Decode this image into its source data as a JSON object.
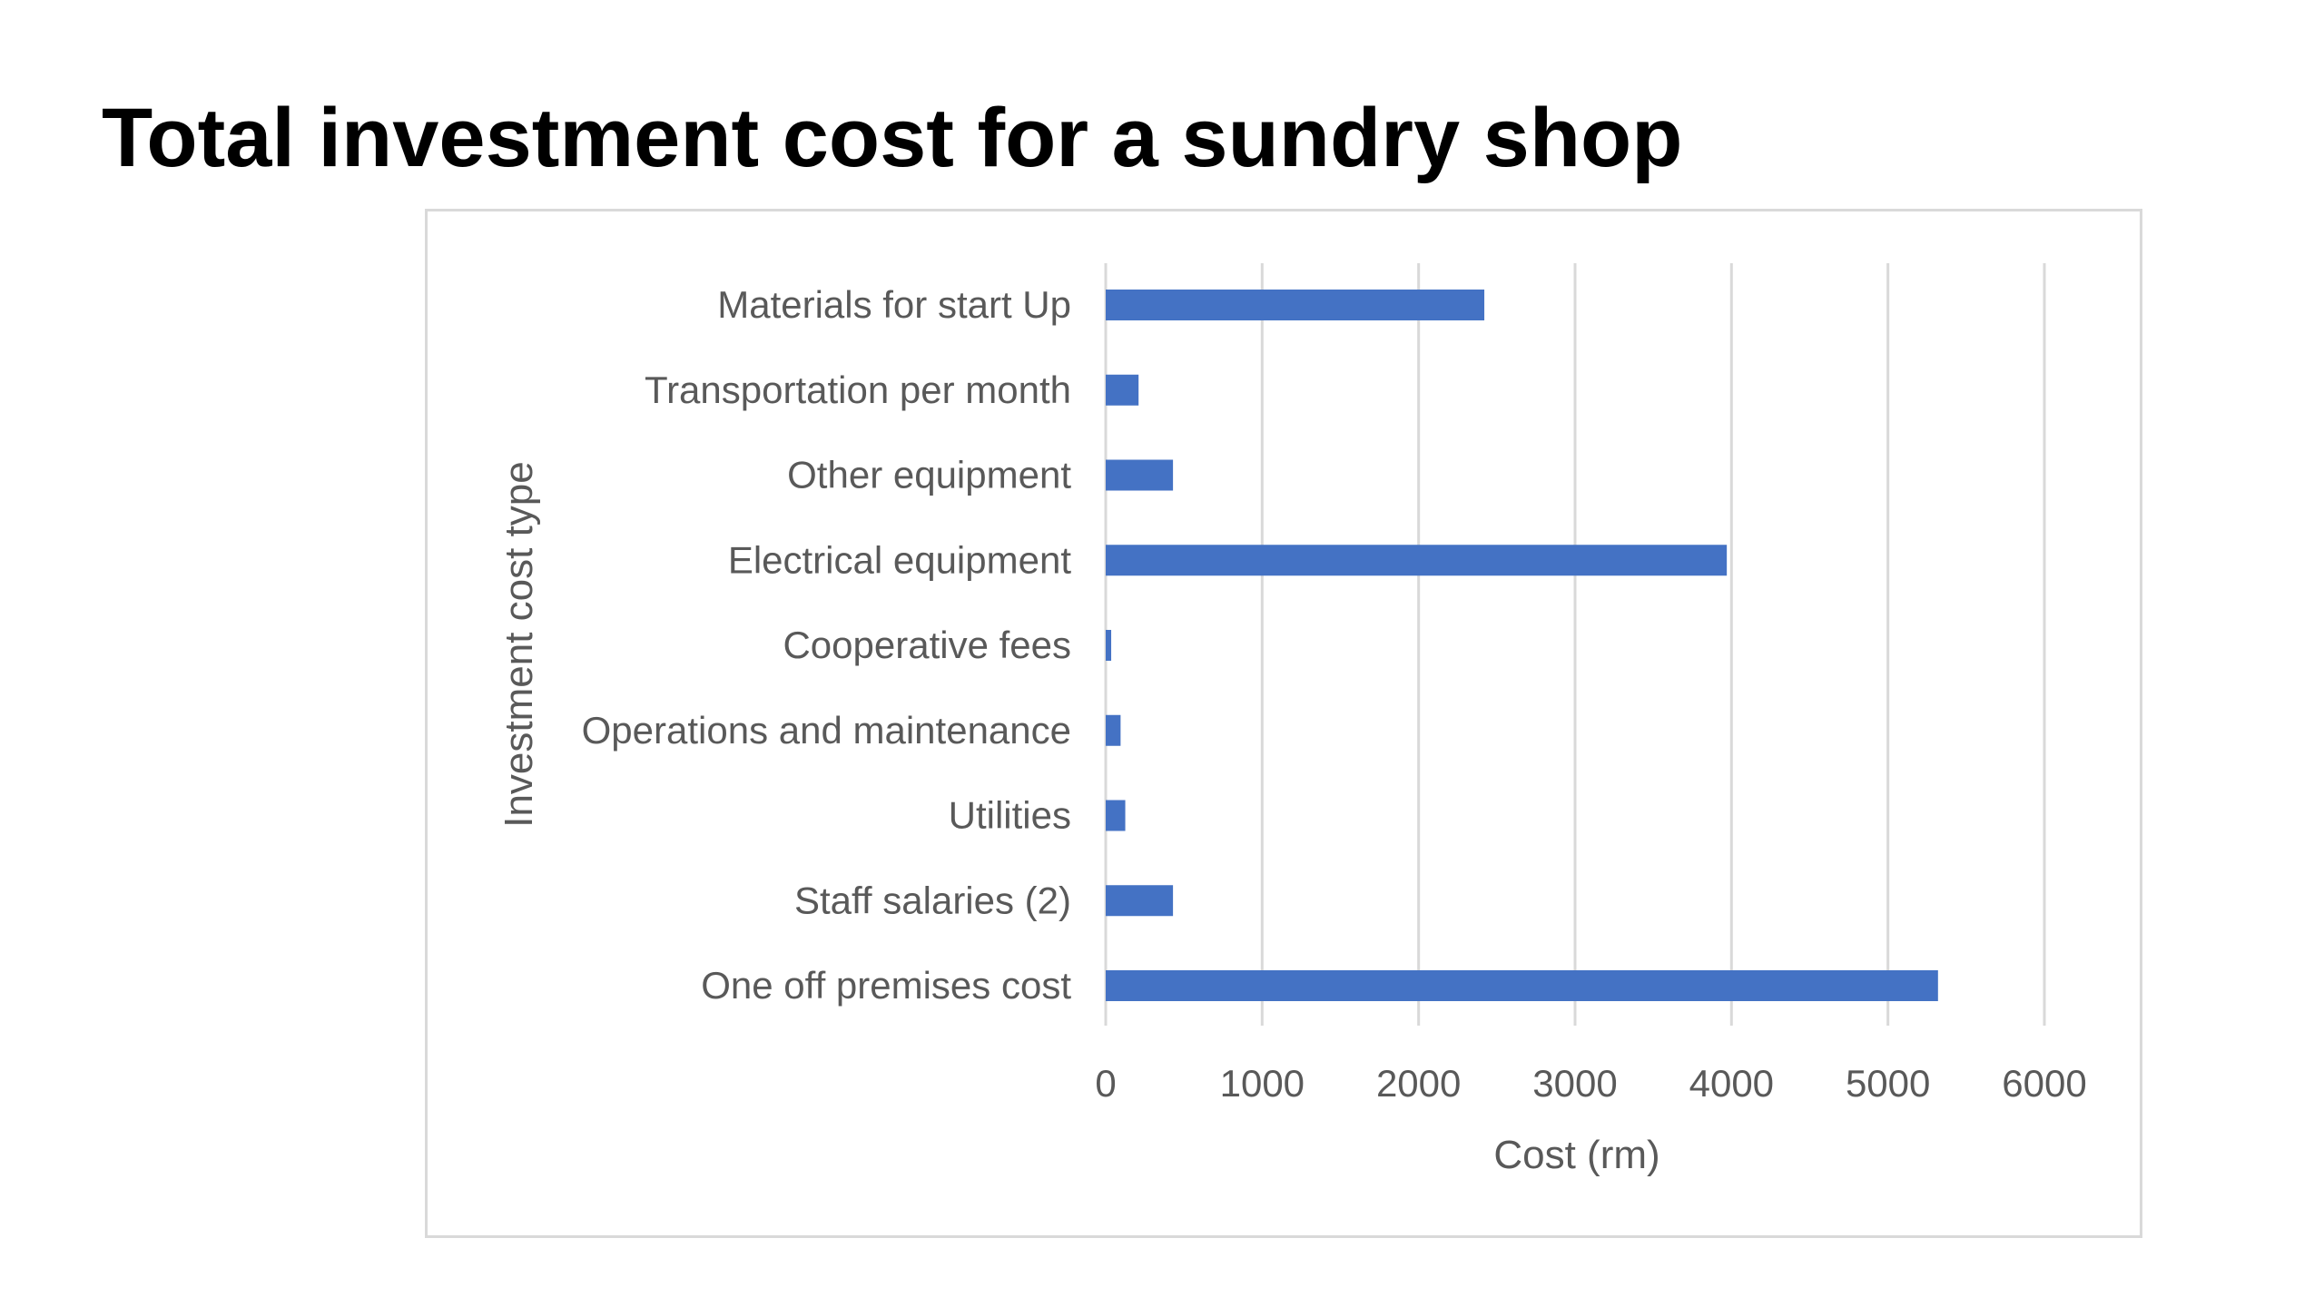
{
  "slide": {
    "title": "Total investment cost for a sundry shop"
  },
  "chart_data": {
    "type": "bar",
    "orientation": "horizontal",
    "categories": [
      "Materials for start Up",
      "Transportation per month",
      "Other equipment",
      "Electrical equipment",
      "Cooperative fees",
      "Operations and maintenance",
      "Utilities",
      "Staff salaries (2)",
      "One off premises cost"
    ],
    "values": [
      2420,
      210,
      430,
      3970,
      35,
      95,
      125,
      430,
      5320
    ],
    "xlabel": "Cost (rm)",
    "ylabel": "Investment cost type",
    "xlim": [
      0,
      6000
    ],
    "xticks": [
      0,
      1000,
      2000,
      3000,
      4000,
      5000,
      6000
    ],
    "xtick_labels": [
      "0",
      "1000",
      "2000",
      "3000",
      "4000",
      "5000",
      "6000"
    ],
    "grid": "vertical",
    "legend": "none",
    "colors": {
      "bar": "#4472c4",
      "grid": "#d9d9d9",
      "text": "#595959",
      "frame": "#d9d9d9"
    }
  }
}
